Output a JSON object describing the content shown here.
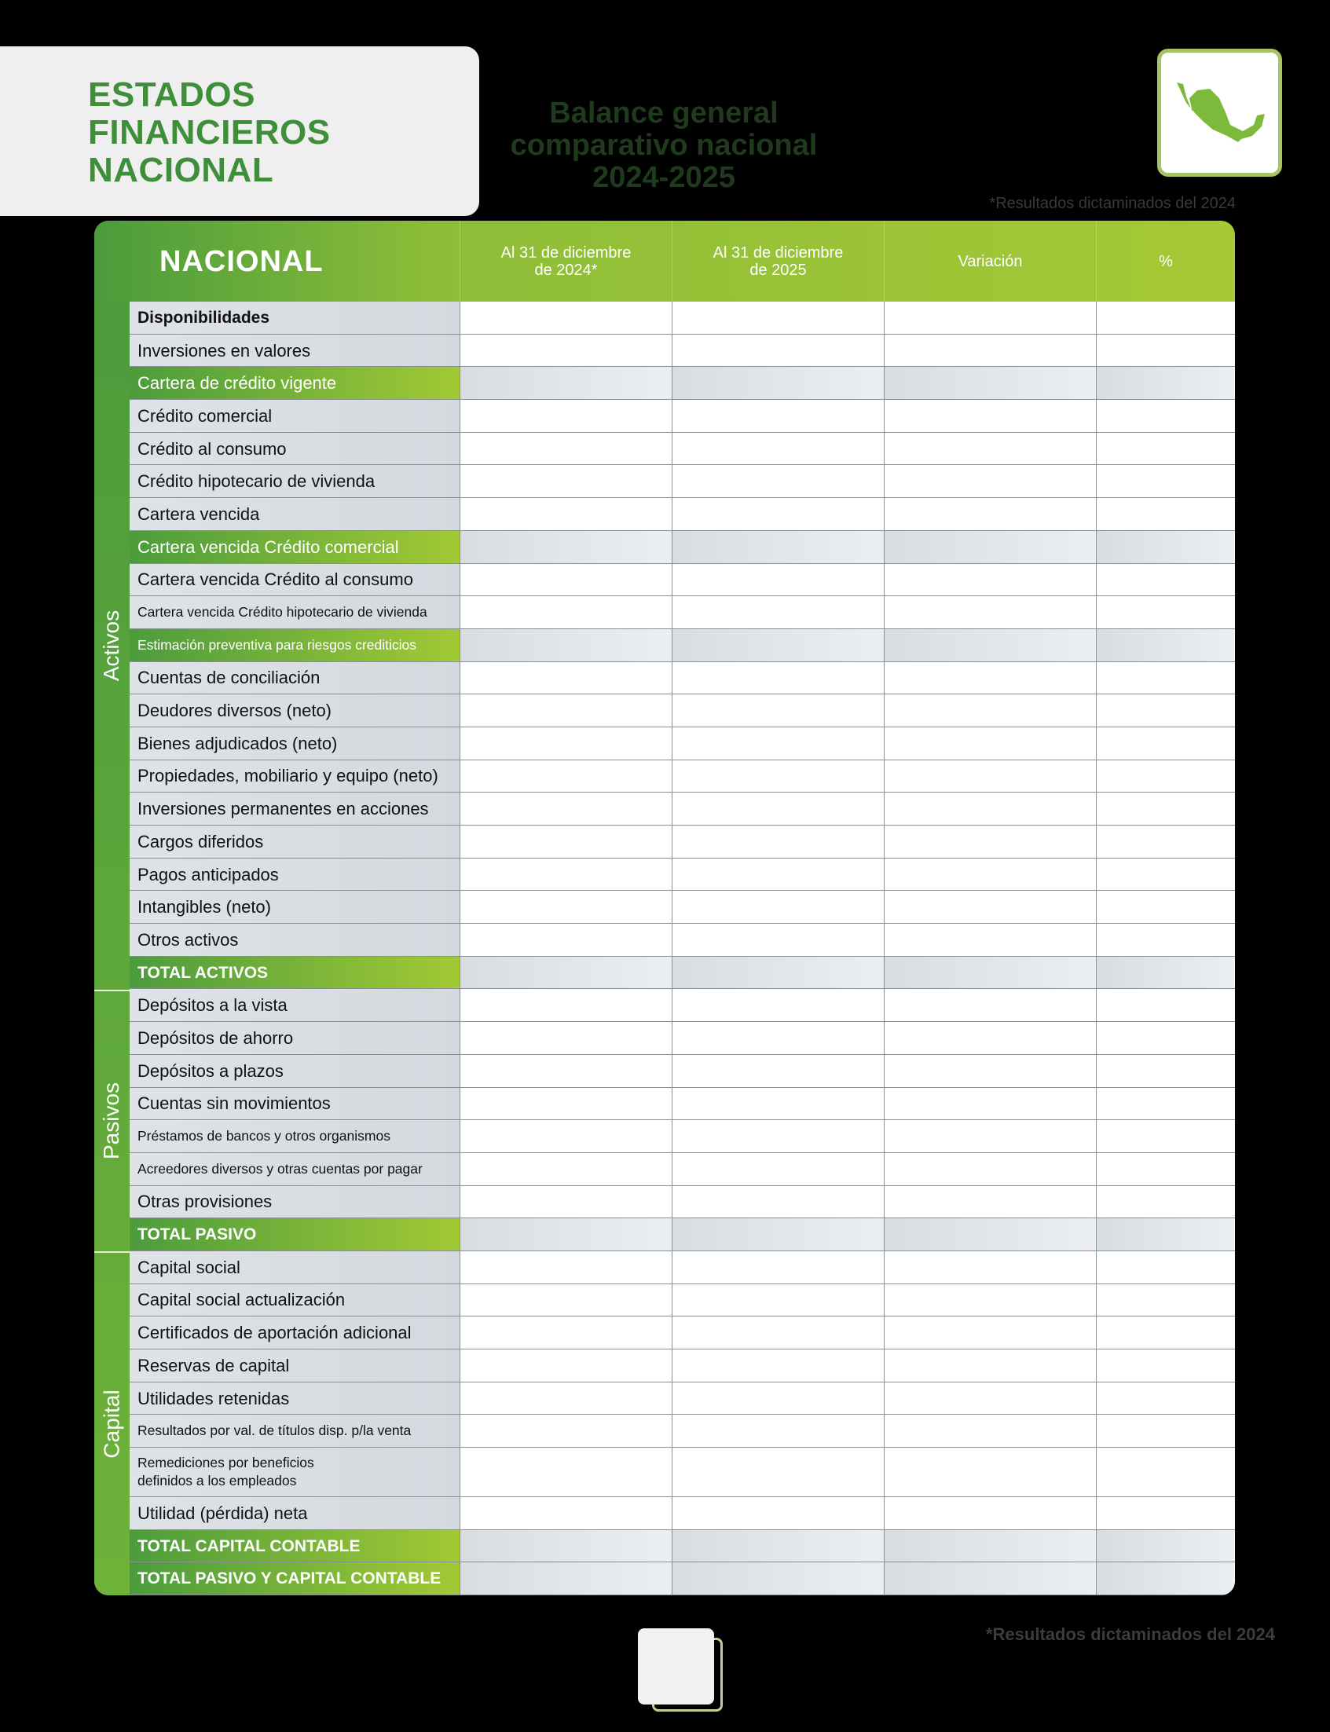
{
  "header": {
    "title_lines": [
      "ESTADOS",
      "FINANCIEROS",
      "NACIONAL"
    ],
    "subtitle_lines": [
      "Balance general",
      "comparativo nacional",
      "2024-2025"
    ],
    "map_icon": "mexico-map-icon",
    "note_top": "*Resultados dictaminados del 2024"
  },
  "colors": {
    "brand_green": "#4a9c3c",
    "lime": "#a6c935",
    "label_gray": "#d8dde2"
  },
  "table": {
    "columns": [
      "NACIONAL",
      "Al 31 de diciembre\nde 2024*",
      "Al 31 de diciembre\nde 2025",
      "Variación",
      "%"
    ],
    "groups": [
      {
        "label": "Activos",
        "count": 21
      },
      {
        "label": "Pasivos",
        "count": 8
      },
      {
        "label": "Capital",
        "count": 10
      }
    ],
    "rows": [
      {
        "label": "Disponibilidades",
        "style": "bold"
      },
      {
        "label": "Inversiones en valores",
        "style": ""
      },
      {
        "label": "Cartera de crédito vigente",
        "style": "hl"
      },
      {
        "label": "Crédito comercial",
        "style": ""
      },
      {
        "label": "Crédito al consumo",
        "style": ""
      },
      {
        "label": "Crédito hipotecario de vivienda",
        "style": ""
      },
      {
        "label": "Cartera vencida",
        "style": ""
      },
      {
        "label": "Cartera vencida Crédito comercial",
        "style": "hl"
      },
      {
        "label": "Cartera vencida Crédito al consumo",
        "style": ""
      },
      {
        "label": "Cartera vencida Crédito hipotecario de vivienda",
        "style": "small"
      },
      {
        "label": "Estimación preventiva para riesgos crediticios",
        "style": "hl small"
      },
      {
        "label": "Cuentas de conciliación",
        "style": ""
      },
      {
        "label": "Deudores diversos (neto)",
        "style": ""
      },
      {
        "label": "Bienes adjudicados (neto)",
        "style": ""
      },
      {
        "label": "Propiedades, mobiliario y equipo (neto)",
        "style": ""
      },
      {
        "label": "Inversiones permanentes en acciones",
        "style": ""
      },
      {
        "label": "Cargos diferidos",
        "style": ""
      },
      {
        "label": "Pagos anticipados",
        "style": ""
      },
      {
        "label": "Intangibles (neto)",
        "style": ""
      },
      {
        "label": "Otros activos",
        "style": ""
      },
      {
        "label": "TOTAL ACTIVOS",
        "style": "total"
      },
      {
        "label": "Depósitos a la vista",
        "style": ""
      },
      {
        "label": "Depósitos de ahorro",
        "style": ""
      },
      {
        "label": "Depósitos a plazos",
        "style": ""
      },
      {
        "label": "Cuentas sin movimientos",
        "style": ""
      },
      {
        "label": "Préstamos de bancos y otros organismos",
        "style": "small"
      },
      {
        "label": "Acreedores diversos y otras cuentas por pagar",
        "style": "small"
      },
      {
        "label": "Otras provisiones",
        "style": ""
      },
      {
        "label": "TOTAL PASIVO",
        "style": "total"
      },
      {
        "label": "Capital social",
        "style": ""
      },
      {
        "label": "Capital social actualización",
        "style": ""
      },
      {
        "label": "Certificados de aportación adicional",
        "style": ""
      },
      {
        "label": "Reservas de capital",
        "style": ""
      },
      {
        "label": "Utilidades retenidas",
        "style": ""
      },
      {
        "label": "Resultados por val. de títulos disp. p/la venta",
        "style": "small"
      },
      {
        "label": "Remediciones por beneficios\ndefinidos a los empleados",
        "style": "small tall"
      },
      {
        "label": "Utilidad (pérdida) neta",
        "style": ""
      },
      {
        "label": "TOTAL CAPITAL CONTABLE",
        "style": "total"
      },
      {
        "label": "TOTAL PASIVO Y CAPITAL CONTABLE",
        "style": "total"
      }
    ]
  },
  "footer": {
    "note": "*Resultados dictaminados del 2024",
    "page_icon": "page-icon"
  }
}
